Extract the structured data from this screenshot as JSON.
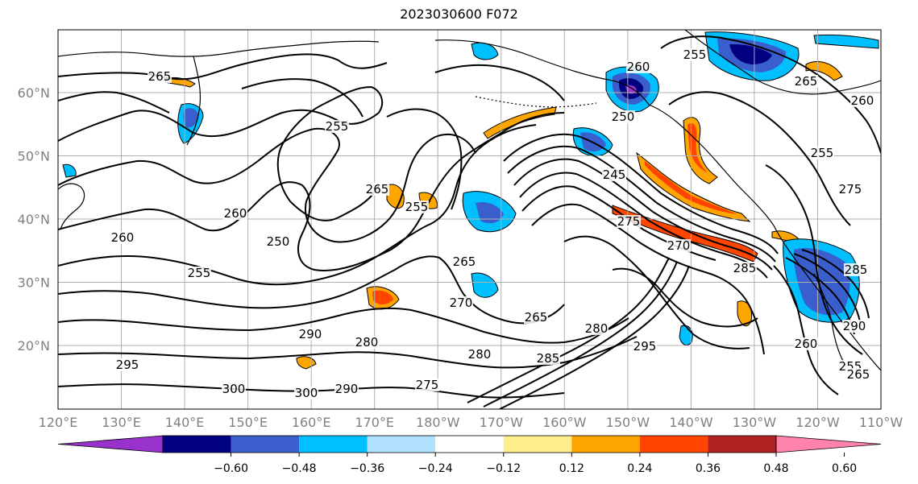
{
  "title": "2023030600 F072",
  "map": {
    "lon_labels": [
      "120°E",
      "130°E",
      "140°E",
      "150°E",
      "160°E",
      "170°E",
      "180°W",
      "170°W",
      "160°W",
      "150°W",
      "140°W",
      "130°W",
      "120°W",
      "110°W"
    ],
    "lat_labels": [
      "60°N",
      "50°N",
      "40°N",
      "30°N",
      "20°N"
    ],
    "contour_labels": [
      "265",
      "255",
      "260",
      "265",
      "255",
      "250",
      "245",
      "255",
      "265",
      "250",
      "260",
      "255",
      "270",
      "265",
      "285",
      "260",
      "260",
      "275",
      "270",
      "265",
      "280",
      "285",
      "275",
      "280",
      "290",
      "290",
      "300",
      "295",
      "255",
      "260",
      "275",
      "285",
      "295",
      "300",
      "290",
      "280",
      "255",
      "265"
    ]
  },
  "colorbar": {
    "ticks": [
      "−0.60",
      "−0.48",
      "−0.36",
      "−0.24",
      "−0.12",
      "0.12",
      "0.24",
      "0.36",
      "0.48",
      "0.60"
    ],
    "colors": [
      "#9932cc",
      "#000080",
      "#3a5fcd",
      "#00bfff",
      "#b0e2ff",
      "#ffffff",
      "#ffec8b",
      "#ffa500",
      "#ff4500",
      "#b22222",
      "#ff82ab"
    ]
  }
}
